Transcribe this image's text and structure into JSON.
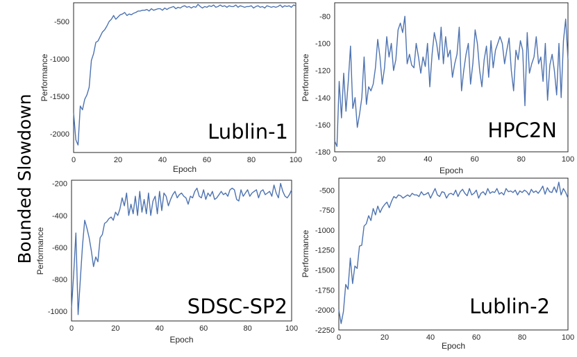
{
  "figure": {
    "side_label": "Bounded Slowdown"
  },
  "chart_data": [
    {
      "type": "line",
      "panel_label": "Lublin-1",
      "xlabel": "Epoch",
      "ylabel": "Performance",
      "xlim": [
        0,
        100
      ],
      "ylim": [
        -2250,
        -250
      ],
      "xticks": [
        0,
        20,
        40,
        60,
        80,
        100
      ],
      "yticks": [
        -2000,
        -1500,
        -1000,
        -500
      ],
      "grid": false,
      "line_color": "#4C72B0",
      "x_start": 0,
      "values": [
        -1720,
        -2080,
        -2150,
        -1630,
        -1680,
        -1540,
        -1480,
        -1380,
        -1020,
        -930,
        -780,
        -760,
        -700,
        -640,
        -610,
        -560,
        -500,
        -470,
        -420,
        -470,
        -440,
        -410,
        -400,
        -380,
        -420,
        -400,
        -410,
        -390,
        -380,
        -360,
        -360,
        -350,
        -350,
        -340,
        -360,
        -330,
        -350,
        -340,
        -330,
        -330,
        -350,
        -320,
        -340,
        -320,
        -310,
        -300,
        -330,
        -310,
        -320,
        -300,
        -290,
        -310,
        -300,
        -320,
        -300,
        -310,
        -270,
        -300,
        -320,
        -300,
        -310,
        -290,
        -300,
        -280,
        -310,
        -300,
        -280,
        -300,
        -290,
        -310,
        -290,
        -300,
        -300,
        -280,
        -310,
        -290,
        -300,
        -310,
        -300,
        -300,
        -290,
        -320,
        -300,
        -290,
        -310,
        -300,
        -320,
        -290,
        -300,
        -310,
        -300,
        -310,
        -300,
        -280,
        -310,
        -290,
        -300,
        -290,
        -310,
        -280,
        -290
      ]
    },
    {
      "type": "line",
      "panel_label": "HPC2N",
      "xlabel": "Epoch",
      "ylabel": "Performance",
      "xlim": [
        0,
        100
      ],
      "ylim": [
        -180,
        -70
      ],
      "xticks": [
        0,
        20,
        40,
        60,
        80,
        100
      ],
      "yticks": [
        -180,
        -160,
        -140,
        -120,
        -100,
        -80
      ],
      "grid": false,
      "line_color": "#4C72B0",
      "x_start": 0,
      "values": [
        -172,
        -176,
        -128,
        -155,
        -122,
        -150,
        -128,
        -102,
        -148,
        -140,
        -162,
        -152,
        -140,
        -110,
        -145,
        -132,
        -135,
        -130,
        -118,
        -97,
        -110,
        -130,
        -118,
        -95,
        -110,
        -100,
        -120,
        -112,
        -90,
        -85,
        -92,
        -80,
        -115,
        -108,
        -116,
        -118,
        -100,
        -110,
        -122,
        -110,
        -117,
        -100,
        -132,
        -108,
        -92,
        -100,
        -112,
        -88,
        -115,
        -95,
        -110,
        -105,
        -125,
        -115,
        -108,
        -88,
        -135,
        -120,
        -108,
        -100,
        -130,
        -115,
        -90,
        -100,
        -120,
        -132,
        -112,
        -102,
        -125,
        -98,
        -118,
        -105,
        -100,
        -95,
        -100,
        -115,
        -105,
        -96,
        -120,
        -135,
        -105,
        -112,
        -98,
        -105,
        -146,
        -92,
        -122,
        -115,
        -110,
        -95,
        -115,
        -110,
        -128,
        -100,
        -142,
        -116,
        -108,
        -120,
        -138,
        -100,
        -140,
        -98,
        -82,
        -112
      ],
      "x_step": 0.962
    },
    {
      "type": "line",
      "panel_label": "SDSC-SP2",
      "xlabel": "Epoch",
      "ylabel": "Performance",
      "xlim": [
        0,
        100
      ],
      "ylim": [
        -1060,
        -180
      ],
      "xticks": [
        0,
        20,
        40,
        60,
        80,
        100
      ],
      "yticks": [
        -1000,
        -800,
        -600,
        -400,
        -200
      ],
      "grid": false,
      "line_color": "#4C72B0",
      "x_start": 0,
      "values": [
        -980,
        -760,
        -510,
        -1020,
        -800,
        -590,
        -430,
        -480,
        -540,
        -620,
        -720,
        -660,
        -690,
        -540,
        -520,
        -450,
        -440,
        -420,
        -410,
        -430,
        -380,
        -400,
        -360,
        -290,
        -340,
        -260,
        -400,
        -330,
        -390,
        -280,
        -400,
        -250,
        -380,
        -300,
        -390,
        -260,
        -400,
        -310,
        -280,
        -390,
        -250,
        -370,
        -260,
        -280,
        -340,
        -300,
        -270,
        -250,
        -290,
        -270,
        -260,
        -280,
        -290,
        -330,
        -280,
        -290,
        -250,
        -230,
        -280,
        -290,
        -240,
        -300,
        -260,
        -280,
        -250,
        -300,
        -290,
        -270,
        -250,
        -270,
        -260,
        -280,
        -240,
        -230,
        -240,
        -300,
        -310,
        -240,
        -280,
        -260,
        -240,
        -280,
        -260,
        -250,
        -240,
        -290,
        -250,
        -240,
        -270,
        -260,
        -250,
        -280,
        -210,
        -260,
        -290,
        -200,
        -250,
        -280,
        -290,
        -270,
        -240
      ]
    },
    {
      "type": "line",
      "panel_label": "Lublin-2",
      "xlabel": "Epoch",
      "ylabel": "Performance",
      "xlim": [
        0,
        100
      ],
      "ylim": [
        -2250,
        -350
      ],
      "xticks": [
        0,
        20,
        40,
        60,
        80,
        100
      ],
      "yticks": [
        -2250,
        -2000,
        -1750,
        -1500,
        -1250,
        -1000,
        -750,
        -500
      ],
      "grid": false,
      "line_color": "#4C72B0",
      "x_start": 0,
      "values": [
        -2000,
        -2170,
        -2020,
        -1680,
        -1740,
        -1350,
        -1670,
        -1450,
        -1480,
        -1200,
        -1190,
        -950,
        -920,
        -820,
        -880,
        -730,
        -810,
        -700,
        -780,
        -720,
        -680,
        -650,
        -720,
        -640,
        -580,
        -600,
        -560,
        -570,
        -600,
        -580,
        -560,
        -580,
        -540,
        -560,
        -560,
        -580,
        -520,
        -560,
        -550,
        -530,
        -600,
        -540,
        -480,
        -560,
        -580,
        -520,
        -530,
        -600,
        -550,
        -540,
        -560,
        -500,
        -580,
        -520,
        -490,
        -540,
        -570,
        -480,
        -560,
        -540,
        -500,
        -600,
        -540,
        -520,
        -560,
        -480,
        -540,
        -520,
        -530,
        -480,
        -550,
        -530,
        -560,
        -480,
        -520,
        -510,
        -530,
        -500,
        -560,
        -510,
        -530,
        -500,
        -520,
        -560,
        -490,
        -530,
        -510,
        -540,
        -500,
        -450,
        -550,
        -470,
        -520,
        -530,
        -460,
        -530,
        -400,
        -560,
        -480,
        -530,
        -600
      ]
    }
  ]
}
